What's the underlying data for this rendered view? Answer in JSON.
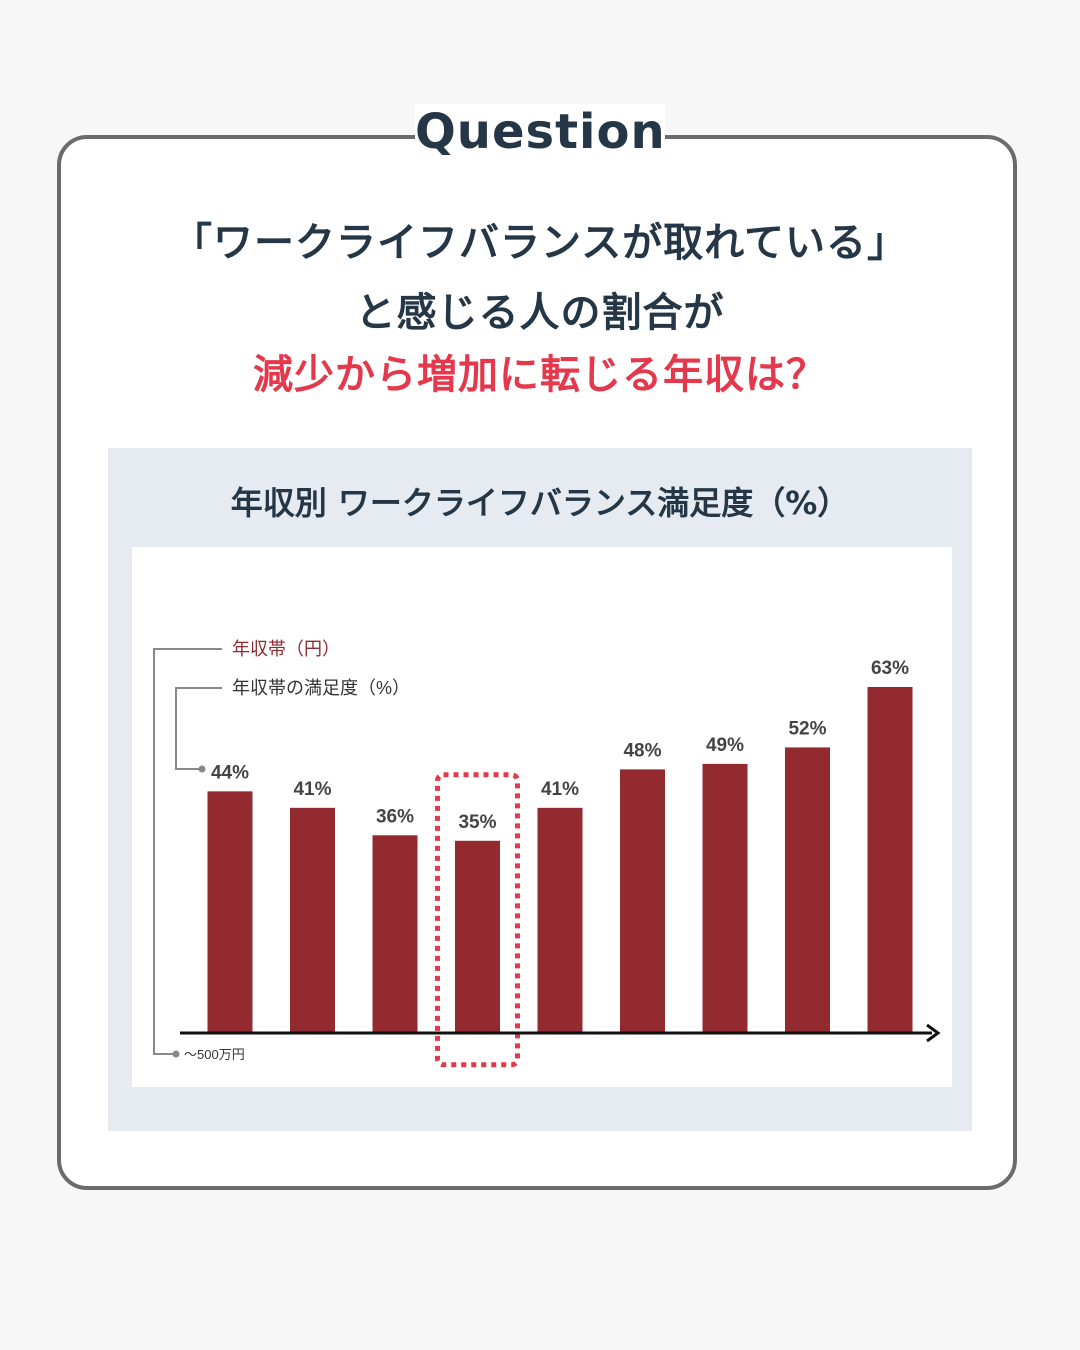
{
  "badge": "Question",
  "headline": {
    "line1": "「ワークライフバランスが取れている」",
    "line2": "と感じる人の割合が",
    "line3": "減少から増加に転じる年収は？"
  },
  "colors": {
    "bar": "#922a2f",
    "accent": "#e4384c",
    "dark": "#253746",
    "panel": "#e5ebf1"
  },
  "chart_data": {
    "type": "bar",
    "title": "年収別 ワークライフバランス満足度（%）",
    "legend": {
      "band_label": "年収帯（円）",
      "value_label": "年収帯の満足度（%）"
    },
    "first_category_label": "〜500万円",
    "labels": [
      "44%",
      "41%",
      "36%",
      "35%",
      "41%",
      "48%",
      "49%",
      "52%",
      "63%"
    ],
    "values": [
      44,
      41,
      36,
      35,
      41,
      48,
      49,
      52,
      63
    ],
    "highlight_index": 3,
    "ylim": [
      0,
      63
    ]
  }
}
